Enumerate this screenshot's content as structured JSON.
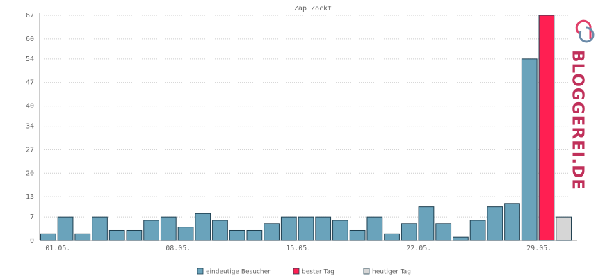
{
  "chart_data": {
    "type": "bar",
    "title": "Zap Zockt",
    "categories": [
      "01.05.",
      null,
      null,
      null,
      null,
      null,
      null,
      "08.05.",
      null,
      null,
      null,
      null,
      null,
      null,
      "15.05.",
      null,
      null,
      null,
      null,
      null,
      null,
      "22.05.",
      null,
      null,
      null,
      null,
      null,
      null,
      "29.05.",
      null,
      null
    ],
    "series": [
      {
        "name": "eindeutige Besucher",
        "color": "#6aa3bb",
        "values": [
          2,
          7,
          2,
          7,
          3,
          3,
          6,
          7,
          4,
          8,
          6,
          3,
          3,
          5,
          7,
          7,
          7,
          6,
          3,
          7,
          2,
          5,
          10,
          5,
          1,
          6,
          10,
          11,
          54,
          null,
          null
        ]
      },
      {
        "name": "bester Tag",
        "color": "#ff1f52",
        "values": [
          null,
          null,
          null,
          null,
          null,
          null,
          null,
          null,
          null,
          null,
          null,
          null,
          null,
          null,
          null,
          null,
          null,
          null,
          null,
          null,
          null,
          null,
          null,
          null,
          null,
          null,
          null,
          null,
          null,
          67,
          null
        ]
      },
      {
        "name": "heutiger Tag",
        "color": "#d6d6d6",
        "values": [
          null,
          null,
          null,
          null,
          null,
          null,
          null,
          null,
          null,
          null,
          null,
          null,
          null,
          null,
          null,
          null,
          null,
          null,
          null,
          null,
          null,
          null,
          null,
          null,
          null,
          null,
          null,
          null,
          null,
          null,
          7
        ]
      }
    ],
    "ylim": [
      0,
      67
    ],
    "yticks": [
      0,
      7,
      13,
      20,
      27,
      34,
      40,
      47,
      54,
      60,
      67
    ],
    "grid": true
  },
  "logo": "BLOGGEREI.DE"
}
